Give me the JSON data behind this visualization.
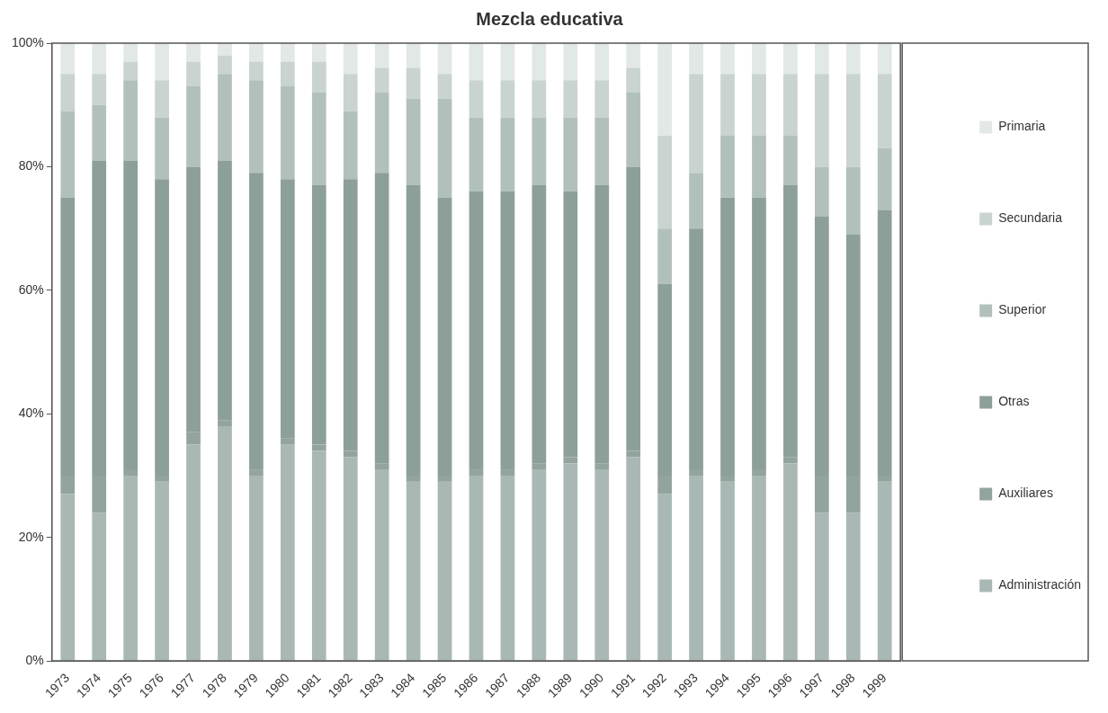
{
  "chart_data": {
    "type": "bar",
    "title": "Mezcla educativa",
    "stacked": true,
    "legend": "right",
    "grid": false,
    "categories": [
      "1973",
      "1974",
      "1975",
      "1976",
      "1977",
      "1978",
      "1979",
      "1980",
      "1981",
      "1982",
      "1983",
      "1984",
      "1985",
      "1986",
      "1987",
      "1988",
      "1989",
      "1990",
      "1991",
      "1992",
      "1993",
      "1994",
      "1995",
      "1996",
      "1997",
      "1998",
      "1999"
    ],
    "ylim": [
      0,
      100
    ],
    "yticks": [
      {
        "value": 0,
        "label": "0%"
      },
      {
        "value": 20,
        "label": "20%"
      },
      {
        "value": 40,
        "label": "40%"
      },
      {
        "value": 60,
        "label": "60%"
      },
      {
        "value": 80,
        "label": "80%"
      },
      {
        "value": 100,
        "label": "100%"
      }
    ],
    "series": [
      {
        "name": "Administración",
        "color": "#a9b8b4",
        "values": [
          27,
          24,
          30,
          29,
          35,
          38,
          30,
          35,
          34,
          33,
          31,
          29,
          29,
          30,
          30,
          31,
          32,
          31,
          33,
          27,
          30,
          29,
          30,
          32,
          24,
          24,
          29
        ]
      },
      {
        "name": "Auxiliares",
        "color": "#93a49f",
        "values": [
          3,
          6,
          1,
          1,
          2,
          1,
          1,
          1,
          1,
          1,
          1,
          1,
          1,
          1,
          1,
          1,
          1,
          1,
          1,
          3,
          1,
          1,
          1,
          1,
          6,
          6,
          1
        ]
      },
      {
        "name": "Otras",
        "color": "#8c9f98",
        "values": [
          45,
          51,
          50,
          48,
          43,
          42,
          48,
          42,
          42,
          44,
          47,
          47,
          45,
          45,
          45,
          45,
          43,
          45,
          46,
          31,
          39,
          45,
          44,
          44,
          42,
          39,
          43
        ]
      },
      {
        "name": "Superior",
        "color": "#b2c0bb",
        "values": [
          14,
          9,
          13,
          10,
          13,
          14,
          15,
          15,
          15,
          11,
          13,
          14,
          16,
          12,
          12,
          11,
          12,
          11,
          12,
          9,
          9,
          10,
          10,
          8,
          8,
          11,
          10
        ]
      },
      {
        "name": "Secundaria",
        "color": "#c9d3d0",
        "values": [
          6,
          5,
          3,
          6,
          4,
          3,
          3,
          4,
          5,
          6,
          4,
          5,
          4,
          6,
          6,
          6,
          6,
          6,
          4,
          15,
          16,
          10,
          10,
          10,
          15,
          15,
          12
        ]
      },
      {
        "name": "Primaria",
        "color": "#e2e8e6",
        "values": [
          5,
          5,
          3,
          6,
          3,
          2,
          3,
          3,
          3,
          5,
          4,
          4,
          5,
          6,
          6,
          6,
          6,
          6,
          4,
          15,
          5,
          5,
          5,
          5,
          5,
          5,
          5
        ]
      }
    ]
  }
}
